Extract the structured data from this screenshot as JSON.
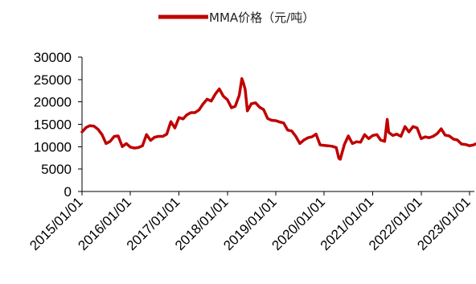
{
  "chart_data": {
    "type": "line",
    "title": "",
    "xlabel": "",
    "ylabel": "",
    "legend": {
      "position": "top-center"
    },
    "grid": false,
    "ylim": [
      0,
      30000
    ],
    "yticks": [
      0,
      5000,
      10000,
      15000,
      20000,
      25000,
      30000
    ],
    "xlim": [
      "2015-01-01",
      "2023-02-15"
    ],
    "xticks": [
      "2015/01/01",
      "2016/01/01",
      "2017/01/01",
      "2018/01/01",
      "2019/01/01",
      "2020/01/01",
      "2021/01/01",
      "2022/01/01",
      "2023/01/01"
    ],
    "series": [
      {
        "name": "MMA价格（元/吨）",
        "color": "#c00000",
        "points": [
          [
            "2015-01-01",
            13300
          ],
          [
            "2015-02-01",
            14300
          ],
          [
            "2015-03-01",
            14700
          ],
          [
            "2015-04-01",
            14600
          ],
          [
            "2015-05-01",
            13900
          ],
          [
            "2015-06-01",
            12700
          ],
          [
            "2015-07-01",
            10700
          ],
          [
            "2015-08-01",
            11200
          ],
          [
            "2015-09-01",
            12300
          ],
          [
            "2015-10-01",
            12400
          ],
          [
            "2015-11-01",
            10000
          ],
          [
            "2015-12-01",
            10700
          ],
          [
            "2016-01-01",
            9900
          ],
          [
            "2016-02-01",
            9700
          ],
          [
            "2016-03-01",
            9800
          ],
          [
            "2016-04-01",
            10200
          ],
          [
            "2016-05-01",
            12700
          ],
          [
            "2016-06-01",
            11400
          ],
          [
            "2016-07-01",
            12100
          ],
          [
            "2016-08-01",
            12300
          ],
          [
            "2016-09-01",
            12300
          ],
          [
            "2016-10-01",
            12800
          ],
          [
            "2016-11-01",
            15600
          ],
          [
            "2016-12-01",
            14200
          ],
          [
            "2017-01-01",
            16500
          ],
          [
            "2017-02-01",
            16200
          ],
          [
            "2017-03-01",
            17100
          ],
          [
            "2017-04-01",
            17600
          ],
          [
            "2017-05-01",
            17600
          ],
          [
            "2017-06-01",
            18200
          ],
          [
            "2017-07-01",
            19500
          ],
          [
            "2017-08-01",
            20600
          ],
          [
            "2017-09-01",
            20200
          ],
          [
            "2017-10-01",
            21700
          ],
          [
            "2017-11-01",
            22900
          ],
          [
            "2017-12-01",
            21300
          ],
          [
            "2018-01-01",
            20500
          ],
          [
            "2018-02-01",
            18700
          ],
          [
            "2018-03-01",
            19000
          ],
          [
            "2018-04-01",
            21500
          ],
          [
            "2018-04-20",
            25200
          ],
          [
            "2018-05-01",
            24300
          ],
          [
            "2018-05-15",
            22800
          ],
          [
            "2018-06-01",
            18000
          ],
          [
            "2018-07-01",
            19600
          ],
          [
            "2018-08-01",
            19800
          ],
          [
            "2018-09-01",
            18800
          ],
          [
            "2018-10-01",
            18300
          ],
          [
            "2018-11-01",
            16300
          ],
          [
            "2018-12-01",
            15900
          ],
          [
            "2019-01-01",
            15800
          ],
          [
            "2019-02-01",
            15500
          ],
          [
            "2019-03-01",
            15300
          ],
          [
            "2019-04-01",
            13700
          ],
          [
            "2019-05-01",
            13500
          ],
          [
            "2019-06-01",
            12300
          ],
          [
            "2019-07-01",
            10700
          ],
          [
            "2019-08-01",
            11500
          ],
          [
            "2019-09-01",
            12000
          ],
          [
            "2019-10-01",
            12200
          ],
          [
            "2019-11-01",
            12800
          ],
          [
            "2019-12-01",
            10400
          ],
          [
            "2020-01-01",
            10300
          ],
          [
            "2020-02-01",
            10200
          ],
          [
            "2020-03-01",
            10100
          ],
          [
            "2020-04-01",
            9800
          ],
          [
            "2020-04-20",
            7400
          ],
          [
            "2020-05-01",
            7200
          ],
          [
            "2020-06-01",
            10500
          ],
          [
            "2020-07-01",
            12400
          ],
          [
            "2020-08-01",
            10700
          ],
          [
            "2020-09-01",
            11100
          ],
          [
            "2020-10-01",
            11000
          ],
          [
            "2020-11-01",
            12700
          ],
          [
            "2020-12-01",
            11800
          ],
          [
            "2021-01-01",
            12500
          ],
          [
            "2021-02-01",
            12700
          ],
          [
            "2021-03-01",
            11500
          ],
          [
            "2021-04-01",
            11200
          ],
          [
            "2021-04-20",
            16100
          ],
          [
            "2021-05-01",
            13200
          ],
          [
            "2021-06-01",
            12500
          ],
          [
            "2021-07-01",
            12800
          ],
          [
            "2021-08-01",
            12300
          ],
          [
            "2021-09-01",
            14500
          ],
          [
            "2021-10-01",
            13300
          ],
          [
            "2021-11-01",
            14500
          ],
          [
            "2021-12-01",
            14200
          ],
          [
            "2022-01-01",
            11800
          ],
          [
            "2022-02-01",
            12200
          ],
          [
            "2022-03-01",
            12000
          ],
          [
            "2022-04-01",
            12300
          ],
          [
            "2022-05-01",
            12900
          ],
          [
            "2022-06-01",
            14000
          ],
          [
            "2022-07-01",
            12600
          ],
          [
            "2022-08-01",
            12400
          ],
          [
            "2022-09-01",
            11700
          ],
          [
            "2022-10-01",
            11500
          ],
          [
            "2022-11-01",
            10600
          ],
          [
            "2022-12-01",
            10500
          ],
          [
            "2023-01-01",
            10200
          ],
          [
            "2023-02-01",
            10400
          ],
          [
            "2023-02-15",
            10600
          ]
        ]
      }
    ]
  }
}
